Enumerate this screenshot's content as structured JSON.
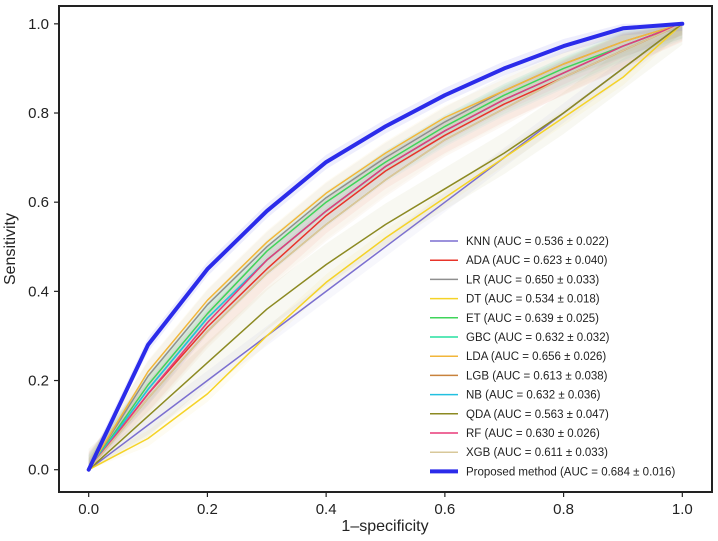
{
  "chart_data": {
    "type": "line",
    "title": "",
    "xlabel": "1–specificity",
    "ylabel": "Sensitivity",
    "xlim": [
      -0.05,
      1.05
    ],
    "ylim": [
      -0.05,
      1.04
    ],
    "xticks": [
      0.0,
      0.2,
      0.4,
      0.6,
      0.8,
      1.0
    ],
    "yticks": [
      0.0,
      0.2,
      0.4,
      0.6,
      0.8,
      1.0
    ],
    "xtick_labels": [
      "0.0",
      "0.2",
      "0.4",
      "0.6",
      "0.8",
      "1.0"
    ],
    "ytick_labels": [
      "0.0",
      "0.2",
      "0.4",
      "0.6",
      "0.8",
      "1.0"
    ],
    "grid": false,
    "legend_position": "lower-right",
    "x": [
      0.0,
      0.1,
      0.2,
      0.3,
      0.4,
      0.5,
      0.6,
      0.7,
      0.8,
      0.9,
      1.0
    ],
    "series": [
      {
        "name": "KNN",
        "label": "KNN (AUC = 0.536 ± 0.022)",
        "color": "#7b6fd0",
        "bold": false,
        "band": 0.022,
        "y": [
          0.0,
          0.1,
          0.2,
          0.3,
          0.4,
          0.5,
          0.6,
          0.7,
          0.8,
          0.9,
          1.0
        ]
      },
      {
        "name": "ADA",
        "label": "ADA (AUC = 0.623 ± 0.040)",
        "color": "#e8342a",
        "bold": false,
        "band": 0.04,
        "y": [
          0.0,
          0.17,
          0.32,
          0.45,
          0.57,
          0.67,
          0.75,
          0.82,
          0.88,
          0.94,
          1.0
        ]
      },
      {
        "name": "LR",
        "label": "LR (AUC = 0.650 ± 0.033)",
        "color": "#8f8f8f",
        "bold": false,
        "band": 0.033,
        "y": [
          0.0,
          0.21,
          0.37,
          0.5,
          0.61,
          0.7,
          0.78,
          0.85,
          0.91,
          0.96,
          1.0
        ]
      },
      {
        "name": "DT",
        "label": "DT (AUC = 0.534 ± 0.018)",
        "color": "#f5d327",
        "bold": false,
        "band": 0.018,
        "y": [
          0.0,
          0.07,
          0.17,
          0.3,
          0.42,
          0.52,
          0.61,
          0.7,
          0.79,
          0.88,
          1.0
        ]
      },
      {
        "name": "ET",
        "label": "ET (AUC = 0.639 ± 0.025)",
        "color": "#3fd45a",
        "bold": false,
        "band": 0.025,
        "y": [
          0.0,
          0.19,
          0.35,
          0.49,
          0.6,
          0.69,
          0.77,
          0.84,
          0.9,
          0.95,
          1.0
        ]
      },
      {
        "name": "GBC",
        "label": "GBC (AUC = 0.632 ± 0.032)",
        "color": "#26e0a0",
        "bold": false,
        "band": 0.032,
        "y": [
          0.0,
          0.18,
          0.34,
          0.47,
          0.58,
          0.68,
          0.76,
          0.83,
          0.89,
          0.95,
          1.0
        ]
      },
      {
        "name": "LDA",
        "label": "LDA (AUC = 0.656 ± 0.026)",
        "color": "#f2b63a",
        "bold": false,
        "band": 0.026,
        "y": [
          0.0,
          0.22,
          0.38,
          0.51,
          0.62,
          0.71,
          0.79,
          0.85,
          0.91,
          0.96,
          1.0
        ]
      },
      {
        "name": "LGB",
        "label": "LGB (AUC = 0.613 ± 0.038)",
        "color": "#c8823c",
        "bold": false,
        "band": 0.038,
        "y": [
          0.0,
          0.16,
          0.31,
          0.44,
          0.55,
          0.65,
          0.74,
          0.81,
          0.88,
          0.94,
          1.0
        ]
      },
      {
        "name": "NB",
        "label": "NB (AUC = 0.632 ± 0.036)",
        "color": "#22c0e0",
        "bold": false,
        "band": 0.036,
        "y": [
          0.0,
          0.18,
          0.34,
          0.47,
          0.58,
          0.68,
          0.76,
          0.83,
          0.89,
          0.95,
          1.0
        ]
      },
      {
        "name": "QDA",
        "label": "QDA (AUC = 0.563 ± 0.047)",
        "color": "#8c8a22",
        "bold": false,
        "band": 0.047,
        "y": [
          0.0,
          0.12,
          0.24,
          0.36,
          0.46,
          0.55,
          0.63,
          0.71,
          0.8,
          0.9,
          1.0
        ]
      },
      {
        "name": "RF",
        "label": "RF (AUC = 0.630 ± 0.026)",
        "color": "#e83a78",
        "bold": false,
        "band": 0.026,
        "y": [
          0.0,
          0.17,
          0.33,
          0.47,
          0.58,
          0.68,
          0.76,
          0.83,
          0.89,
          0.95,
          1.0
        ]
      },
      {
        "name": "XGB",
        "label": "XGB (AUC = 0.611 ± 0.033)",
        "color": "#d8c89a",
        "bold": false,
        "band": 0.033,
        "y": [
          0.0,
          0.16,
          0.31,
          0.44,
          0.55,
          0.65,
          0.74,
          0.81,
          0.88,
          0.94,
          1.0
        ]
      },
      {
        "name": "Proposed method",
        "label": "Proposed method (AUC = 0.684 ± 0.016)",
        "color": "#2b2bea",
        "bold": true,
        "band": 0.016,
        "y": [
          0.0,
          0.28,
          0.45,
          0.58,
          0.69,
          0.77,
          0.84,
          0.9,
          0.95,
          0.99,
          1.0
        ]
      }
    ]
  }
}
